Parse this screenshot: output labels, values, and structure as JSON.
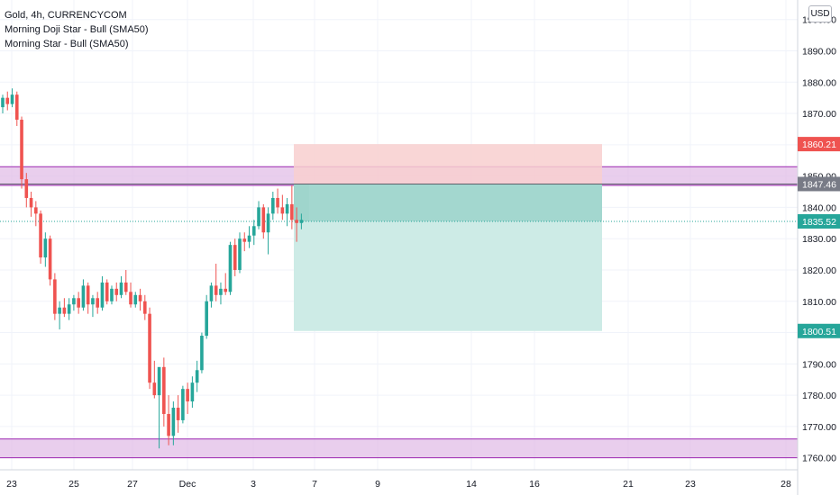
{
  "legend": {
    "symbol_line": "Gold, 4h, CURRENCYCOM",
    "indicators": [
      "Morning Doji Star - Bull (SMA50)",
      "Morning Star - Bull (SMA50)"
    ]
  },
  "currency_button": "USD",
  "colors": {
    "up": "#26a69a",
    "down": "#ef5350",
    "zone_fill": "#e1bee7",
    "zone_line": "#9c27b0",
    "stop_zone": "#f8cfcf",
    "target_zone": "#cdebe6",
    "target_zone_dark": "#9fd5cc",
    "stop_label": "#ef5350",
    "target_label": "#26a69a",
    "entry_label": "#787b86",
    "last_label": "#26a69a"
  },
  "chart_data": {
    "type": "candlestick",
    "y_range": [
      1757,
      1904
    ],
    "y_ticks": [
      "1760.00",
      "1770.00",
      "1780.00",
      "1790.00",
      "1800.00",
      "1810.00",
      "1820.00",
      "1830.00",
      "1840.00",
      "1850.00",
      "1860.00",
      "1870.00",
      "1880.00",
      "1890.00",
      "1900.00"
    ],
    "x_ticks": [
      "23",
      "25",
      "27",
      "Dec",
      "3",
      "7",
      "9",
      "14",
      "16",
      "21",
      "23",
      "28"
    ],
    "candles": [
      [
        1872,
        1876,
        1870,
        1875
      ],
      [
        1875,
        1877,
        1871,
        1873
      ],
      [
        1873,
        1878,
        1872,
        1876
      ],
      [
        1876,
        1877,
        1866,
        1868
      ],
      [
        1868,
        1869,
        1846,
        1849
      ],
      [
        1849,
        1851,
        1840,
        1843
      ],
      [
        1843,
        1845,
        1837,
        1840
      ],
      [
        1840,
        1842,
        1834,
        1838
      ],
      [
        1838,
        1839,
        1822,
        1824
      ],
      [
        1824,
        1832,
        1821,
        1830
      ],
      [
        1830,
        1831,
        1815,
        1817
      ],
      [
        1817,
        1819,
        1804,
        1806
      ],
      [
        1806,
        1810,
        1801,
        1808
      ],
      [
        1808,
        1811,
        1805,
        1806
      ],
      [
        1806,
        1811,
        1804,
        1809
      ],
      [
        1809,
        1812,
        1807,
        1811
      ],
      [
        1811,
        1813,
        1806,
        1808
      ],
      [
        1808,
        1817,
        1807,
        1815
      ],
      [
        1815,
        1816,
        1806,
        1809
      ],
      [
        1809,
        1812,
        1805,
        1811
      ],
      [
        1811,
        1813,
        1806,
        1808
      ],
      [
        1808,
        1818,
        1807,
        1816
      ],
      [
        1816,
        1817,
        1809,
        1810
      ],
      [
        1810,
        1815,
        1809,
        1814
      ],
      [
        1814,
        1816,
        1810,
        1812
      ],
      [
        1812,
        1818,
        1811,
        1816
      ],
      [
        1816,
        1820,
        1812,
        1813
      ],
      [
        1813,
        1816,
        1808,
        1809
      ],
      [
        1809,
        1813,
        1808,
        1812
      ],
      [
        1812,
        1814,
        1807,
        1810
      ],
      [
        1810,
        1812,
        1804,
        1806
      ],
      [
        1806,
        1808,
        1782,
        1784
      ],
      [
        1784,
        1791,
        1779,
        1780
      ],
      [
        1780,
        1788,
        1763,
        1789
      ],
      [
        1789,
        1792,
        1770,
        1774
      ],
      [
        1774,
        1780,
        1764,
        1767
      ],
      [
        1767,
        1778,
        1764,
        1776
      ],
      [
        1776,
        1780,
        1768,
        1772
      ],
      [
        1772,
        1783,
        1771,
        1782
      ],
      [
        1782,
        1784,
        1774,
        1778
      ],
      [
        1778,
        1786,
        1776,
        1784
      ],
      [
        1784,
        1791,
        1781,
        1788
      ],
      [
        1788,
        1800,
        1787,
        1799
      ],
      [
        1799,
        1812,
        1798,
        1810
      ],
      [
        1810,
        1816,
        1808,
        1815
      ],
      [
        1815,
        1822,
        1810,
        1812
      ],
      [
        1812,
        1816,
        1809,
        1814
      ],
      [
        1814,
        1819,
        1812,
        1813
      ],
      [
        1813,
        1829,
        1812,
        1828
      ],
      [
        1828,
        1830,
        1818,
        1820
      ],
      [
        1820,
        1832,
        1819,
        1830
      ],
      [
        1830,
        1832,
        1826,
        1829
      ],
      [
        1829,
        1834,
        1827,
        1831
      ],
      [
        1831,
        1836,
        1828,
        1834
      ],
      [
        1834,
        1842,
        1833,
        1840
      ],
      [
        1840,
        1841,
        1830,
        1832
      ],
      [
        1832,
        1840,
        1825,
        1838
      ],
      [
        1838,
        1845,
        1836,
        1843
      ],
      [
        1843,
        1846,
        1838,
        1840
      ],
      [
        1840,
        1844,
        1836,
        1838
      ],
      [
        1838,
        1843,
        1834,
        1841
      ],
      [
        1841,
        1847,
        1833,
        1836
      ],
      [
        1836,
        1840,
        1829,
        1835
      ],
      [
        1835,
        1838,
        1833,
        1836
      ]
    ],
    "horizontal_zones": [
      {
        "top": 1853,
        "bottom": 1847
      },
      {
        "top": 1766,
        "bottom": 1760
      }
    ],
    "position": {
      "entry": 1847.46,
      "stop": 1860.21,
      "target": 1800.51,
      "last": 1835.52
    },
    "price_labels": {
      "stop": "1860.21",
      "entry": "1847.46",
      "last": "1835.52",
      "target": "1800.51"
    }
  }
}
